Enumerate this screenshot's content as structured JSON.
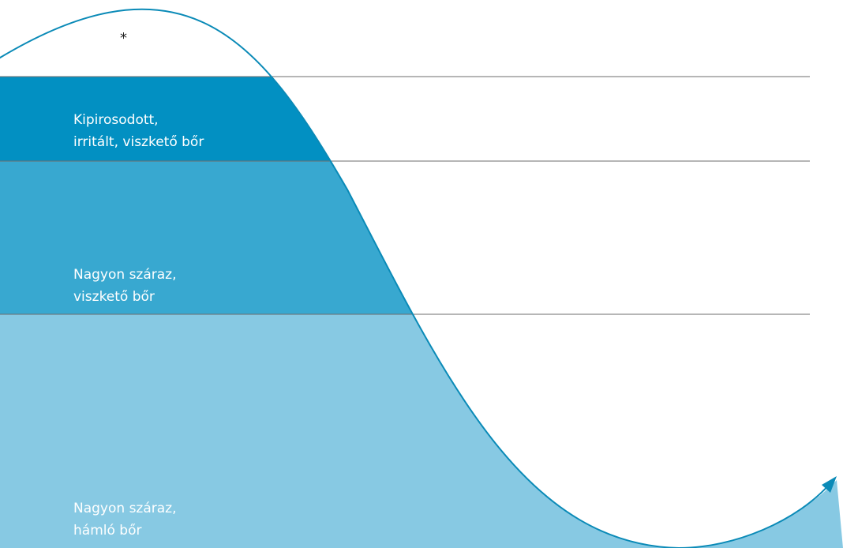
{
  "marker": "*",
  "bands": [
    {
      "line1": "Kipirosodott,",
      "line2": "irritált, viszkető bőr",
      "color": "#0290c2"
    },
    {
      "line1": "Nagyon száraz,",
      "line2": "viszkető bőr",
      "color": "#38a8d0"
    },
    {
      "line1": "Nagyon száraz,",
      "line2": "hámló bőr",
      "color": "#87c9e3"
    }
  ],
  "colors": {
    "curve": "#0a8ab7",
    "divider": "#6d6d6d",
    "background": "#ffffff"
  }
}
